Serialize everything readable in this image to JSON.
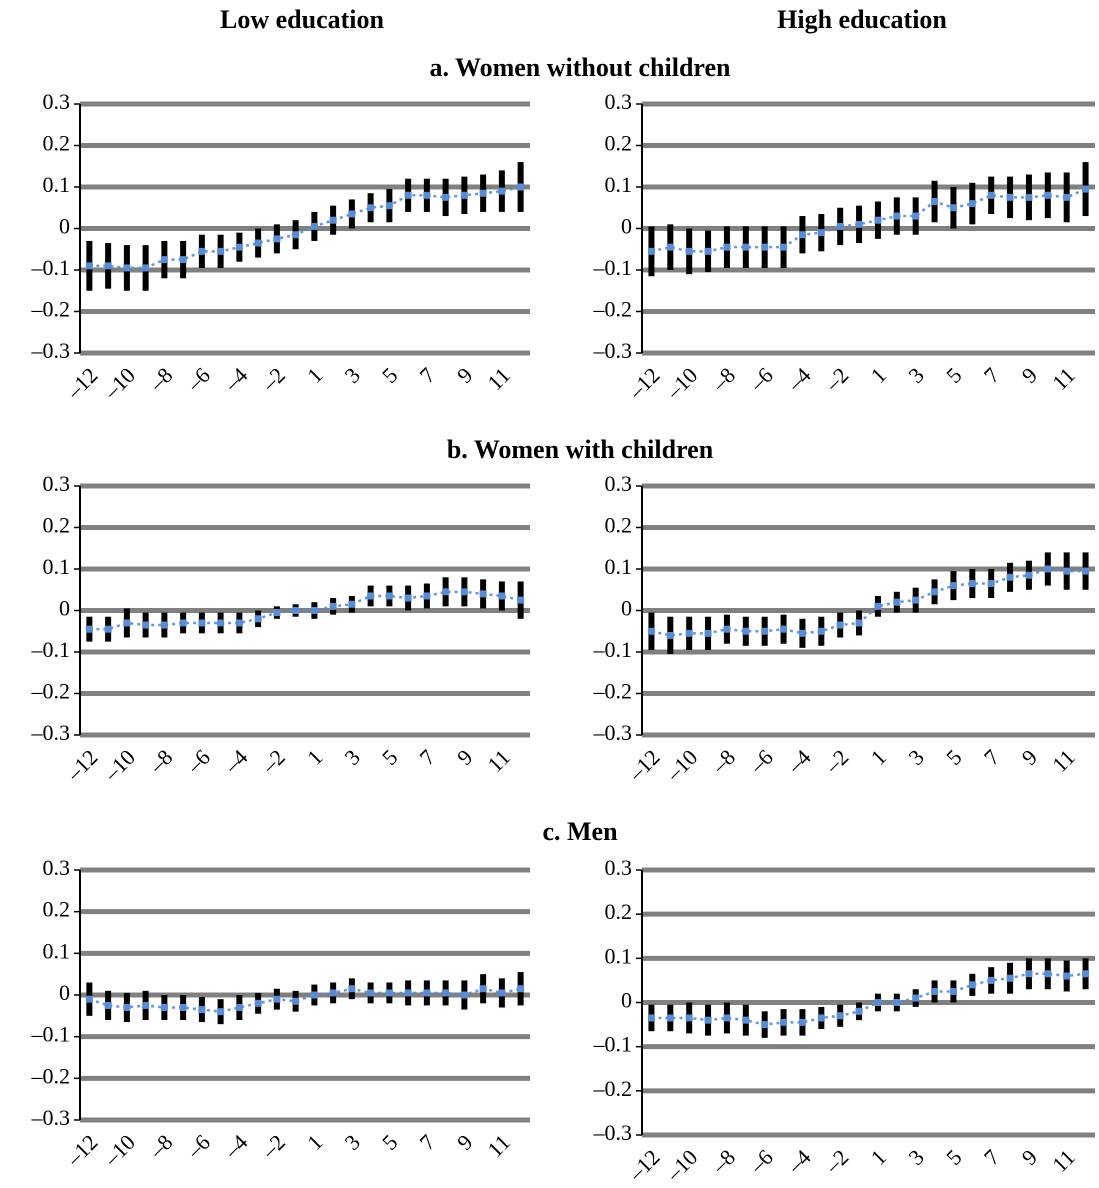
{
  "column_headers": [
    "Low education",
    "High education"
  ],
  "panel_titles": [
    "a. Women without children",
    "b. Women with children",
    "c. Men"
  ],
  "chart_data": [
    {
      "type": "errorbar",
      "categories": [
        "–12",
        null,
        "–10",
        null,
        "–8",
        null,
        "–6",
        null,
        "–4",
        null,
        "–2",
        null,
        "1",
        null,
        "3",
        null,
        "5",
        null,
        "7",
        null,
        "9",
        null,
        "11",
        null
      ],
      "series": [
        {
          "color": "#5b8bd0",
          "error_color": "#000000",
          "values": [
            -0.09,
            -0.09,
            -0.095,
            -0.095,
            -0.075,
            -0.075,
            -0.055,
            -0.055,
            -0.045,
            -0.035,
            -0.025,
            -0.015,
            0.005,
            0.02,
            0.035,
            0.05,
            0.055,
            0.08,
            0.08,
            0.075,
            0.08,
            0.085,
            0.09,
            0.1
          ],
          "errors": [
            0.06,
            0.055,
            0.055,
            0.055,
            0.045,
            0.045,
            0.04,
            0.04,
            0.035,
            0.035,
            0.035,
            0.035,
            0.035,
            0.035,
            0.035,
            0.035,
            0.04,
            0.04,
            0.04,
            0.045,
            0.045,
            0.045,
            0.05,
            0.06
          ]
        }
      ],
      "ylim": [
        -0.3,
        0.3
      ],
      "yticks": [
        {
          "value": -0.3,
          "label": "–0.3"
        },
        {
          "value": -0.2,
          "label": "–0.2"
        },
        {
          "value": -0.1,
          "label": "–0.1"
        },
        0,
        0.1,
        0.2,
        0.3
      ],
      "grid": true
    },
    {
      "type": "errorbar",
      "categories": [
        "–12",
        null,
        "–10",
        null,
        "–8",
        null,
        "–6",
        null,
        "–4",
        null,
        "–2",
        null,
        "1",
        null,
        "3",
        null,
        "5",
        null,
        "7",
        null,
        "9",
        null,
        "11",
        null
      ],
      "series": [
        {
          "color": "#5b8bd0",
          "error_color": "#000000",
          "values": [
            -0.055,
            -0.045,
            -0.055,
            -0.055,
            -0.045,
            -0.045,
            -0.045,
            -0.045,
            -0.015,
            -0.01,
            0.005,
            0.01,
            0.02,
            0.03,
            0.03,
            0.065,
            0.05,
            0.06,
            0.08,
            0.075,
            0.075,
            0.08,
            0.075,
            0.095
          ],
          "errors": [
            0.06,
            0.055,
            0.055,
            0.05,
            0.05,
            0.05,
            0.05,
            0.05,
            0.045,
            0.045,
            0.045,
            0.045,
            0.045,
            0.045,
            0.045,
            0.05,
            0.05,
            0.05,
            0.045,
            0.05,
            0.055,
            0.055,
            0.06,
            0.065
          ]
        }
      ],
      "ylim": [
        -0.3,
        0.3
      ],
      "yticks": [
        {
          "value": -0.3,
          "label": "–0.3"
        },
        {
          "value": -0.2,
          "label": "–0.2"
        },
        {
          "value": -0.1,
          "label": "–0.1"
        },
        0,
        0.1,
        0.2,
        0.3
      ],
      "grid": true
    },
    {
      "type": "errorbar",
      "categories": [
        "–12",
        null,
        "–10",
        null,
        "–8",
        null,
        "–6",
        null,
        "–4",
        null,
        "–2",
        null,
        "1",
        null,
        "3",
        null,
        "5",
        null,
        "7",
        null,
        "9",
        null,
        "11",
        null
      ],
      "series": [
        {
          "color": "#5b8bd0",
          "error_color": "#000000",
          "values": [
            -0.045,
            -0.045,
            -0.03,
            -0.035,
            -0.035,
            -0.03,
            -0.03,
            -0.03,
            -0.03,
            -0.02,
            -0.005,
            0,
            0,
            0.01,
            0.015,
            0.035,
            0.035,
            0.03,
            0.035,
            0.045,
            0.045,
            0.04,
            0.035,
            0.025
          ],
          "errors": [
            0.03,
            0.03,
            0.035,
            0.03,
            0.03,
            0.025,
            0.025,
            0.025,
            0.025,
            0.02,
            0.015,
            0.015,
            0.02,
            0.02,
            0.02,
            0.025,
            0.025,
            0.03,
            0.03,
            0.035,
            0.035,
            0.035,
            0.035,
            0.045
          ]
        }
      ],
      "ylim": [
        -0.3,
        0.3
      ],
      "yticks": [
        {
          "value": -0.3,
          "label": "–0.3"
        },
        {
          "value": -0.2,
          "label": "–0.2"
        },
        {
          "value": -0.1,
          "label": "–0.1"
        },
        0,
        0.1,
        0.2,
        0.3
      ],
      "grid": true
    },
    {
      "type": "errorbar",
      "categories": [
        "–12",
        null,
        "–10",
        null,
        "–8",
        null,
        "–6",
        null,
        "–4",
        null,
        "–2",
        null,
        "1",
        null,
        "3",
        null,
        "5",
        null,
        "7",
        null,
        "9",
        null,
        "11",
        null
      ],
      "series": [
        {
          "color": "#5b8bd0",
          "error_color": "#000000",
          "values": [
            -0.05,
            -0.06,
            -0.055,
            -0.055,
            -0.045,
            -0.05,
            -0.05,
            -0.045,
            -0.055,
            -0.05,
            -0.035,
            -0.03,
            0.01,
            0.02,
            0.025,
            0.045,
            0.06,
            0.065,
            0.065,
            0.08,
            0.085,
            0.1,
            0.095,
            0.095
          ],
          "errors": [
            0.045,
            0.045,
            0.04,
            0.04,
            0.035,
            0.035,
            0.035,
            0.035,
            0.035,
            0.035,
            0.03,
            0.03,
            0.025,
            0.025,
            0.03,
            0.03,
            0.035,
            0.035,
            0.035,
            0.035,
            0.035,
            0.04,
            0.045,
            0.045
          ]
        }
      ],
      "ylim": [
        -0.3,
        0.3
      ],
      "yticks": [
        {
          "value": -0.3,
          "label": "–0.3"
        },
        {
          "value": -0.2,
          "label": "–0.2"
        },
        {
          "value": -0.1,
          "label": "–0.1"
        },
        0,
        0.1,
        0.2,
        0.3
      ],
      "grid": true
    },
    {
      "type": "errorbar",
      "categories": [
        "–12",
        null,
        "–10",
        null,
        "–8",
        null,
        "–6",
        null,
        "–4",
        null,
        "–2",
        null,
        "1",
        null,
        "3",
        null,
        "5",
        null,
        "7",
        null,
        "9",
        null,
        "11",
        null
      ],
      "series": [
        {
          "color": "#5b8bd0",
          "error_color": "#000000",
          "values": [
            -0.01,
            -0.025,
            -0.03,
            -0.025,
            -0.03,
            -0.03,
            -0.035,
            -0.04,
            -0.03,
            -0.02,
            -0.01,
            -0.015,
            0,
            0.005,
            0.015,
            0.005,
            0.005,
            0.005,
            0.005,
            0.005,
            0,
            0.015,
            0.005,
            0.015
          ],
          "errors": [
            0.04,
            0.035,
            0.035,
            0.035,
            0.03,
            0.03,
            0.03,
            0.03,
            0.03,
            0.025,
            0.025,
            0.025,
            0.025,
            0.025,
            0.025,
            0.025,
            0.025,
            0.03,
            0.03,
            0.03,
            0.035,
            0.035,
            0.035,
            0.04
          ]
        }
      ],
      "ylim": [
        -0.3,
        0.3
      ],
      "yticks": [
        {
          "value": -0.3,
          "label": "–0.3"
        },
        {
          "value": -0.2,
          "label": "–0.2"
        },
        {
          "value": -0.1,
          "label": "–0.1"
        },
        0,
        0.1,
        0.2,
        0.3
      ],
      "grid": true
    },
    {
      "type": "errorbar",
      "categories": [
        "–12",
        null,
        "–10",
        null,
        "–8",
        null,
        "–6",
        null,
        "–4",
        null,
        "–2",
        null,
        "1",
        null,
        "3",
        null,
        "5",
        null,
        "7",
        null,
        "9",
        null,
        "11",
        null
      ],
      "series": [
        {
          "color": "#5b8bd0",
          "error_color": "#000000",
          "values": [
            -0.035,
            -0.035,
            -0.035,
            -0.04,
            -0.035,
            -0.04,
            -0.05,
            -0.045,
            -0.045,
            -0.035,
            -0.03,
            -0.02,
            0,
            0,
            0.01,
            0.025,
            0.025,
            0.04,
            0.05,
            0.055,
            0.065,
            0.065,
            0.06,
            0.065
          ],
          "errors": [
            0.03,
            0.03,
            0.035,
            0.035,
            0.035,
            0.035,
            0.03,
            0.03,
            0.03,
            0.025,
            0.025,
            0.02,
            0.02,
            0.02,
            0.02,
            0.025,
            0.025,
            0.025,
            0.03,
            0.035,
            0.035,
            0.035,
            0.035,
            0.035
          ]
        }
      ],
      "ylim": [
        -0.3,
        0.3
      ],
      "yticks": [
        {
          "value": -0.3,
          "label": "–0.3"
        },
        {
          "value": -0.2,
          "label": "–0.2"
        },
        {
          "value": -0.1,
          "label": "–0.1"
        },
        0,
        0.1,
        0.2,
        0.3
      ],
      "grid": true
    }
  ]
}
